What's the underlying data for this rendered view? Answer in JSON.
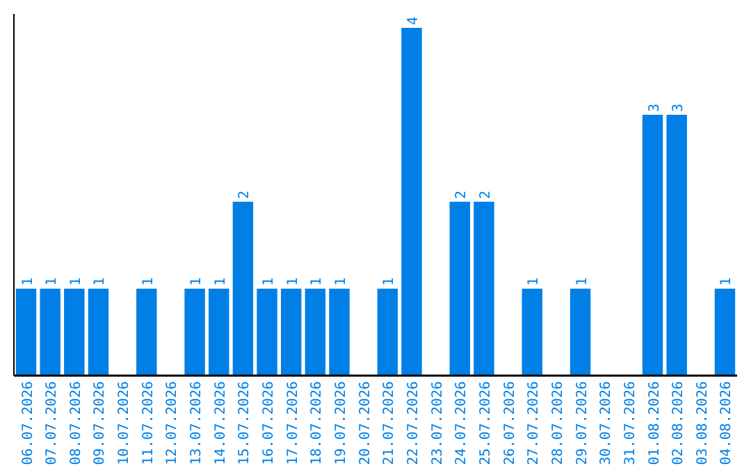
{
  "chart_data": {
    "type": "bar",
    "categories": [
      "06.07.2026",
      "07.07.2026",
      "08.07.2026",
      "09.07.2026",
      "10.07.2026",
      "11.07.2026",
      "12.07.2026",
      "13.07.2026",
      "14.07.2026",
      "15.07.2026",
      "16.07.2026",
      "17.07.2026",
      "18.07.2026",
      "19.07.2026",
      "20.07.2026",
      "21.07.2026",
      "22.07.2026",
      "23.07.2026",
      "24.07.2026",
      "25.07.2026",
      "26.07.2026",
      "27.07.2026",
      "28.07.2026",
      "29.07.2026",
      "30.07.2026",
      "31.07.2026",
      "01.08.2026",
      "02.08.2026",
      "03.08.2026",
      "04.08.2026"
    ],
    "values": [
      1,
      1,
      1,
      1,
      0,
      1,
      0,
      1,
      1,
      2,
      1,
      1,
      1,
      1,
      0,
      1,
      4,
      0,
      2,
      2,
      0,
      1,
      0,
      1,
      0,
      0,
      3,
      3,
      0,
      1
    ],
    "value_labels": [
      "1",
      "1",
      "1",
      "1",
      null,
      "1",
      null,
      "1",
      "1",
      "2",
      "1",
      "1",
      "1",
      "1",
      null,
      "1",
      "4",
      null,
      "2",
      "2",
      null,
      "1",
      null,
      "1",
      null,
      null,
      "3",
      "3",
      null,
      "1"
    ],
    "color": "#0080e6",
    "tick_labels": "x"
  }
}
